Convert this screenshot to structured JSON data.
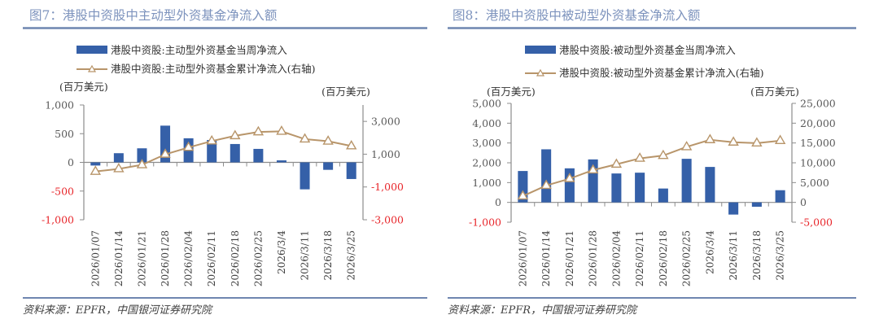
{
  "colors": {
    "bar": "#3560a8",
    "line": "#b8956a",
    "negative_tick": "#e8252a",
    "rule": "#6f86b0",
    "title": "#7d93bd"
  },
  "source_label": "资料来源：EPFR，中国银河证券研究院",
  "chart_data": [
    {
      "type": "bar+line",
      "title": "图7：港股中资股中主动型外资基金净流入额",
      "left_unit": "(百万美元)",
      "right_unit": "(百万美元)",
      "categories": [
        "2026/01/07",
        "2026/01/14",
        "2026/01/21",
        "2026/01/28",
        "2026/02/04",
        "2026/02/11",
        "2026/02/18",
        "2026/02/25",
        "2026/3/4",
        "2026/3/11",
        "2026/3/18",
        "2026/3/25"
      ],
      "series": [
        {
          "name": "港股中资股:主动型外资基金当周净流入",
          "type": "bar",
          "axis": "left",
          "values": [
            -55,
            160,
            245,
            640,
            420,
            390,
            320,
            235,
            35,
            -470,
            -130,
            -290
          ]
        },
        {
          "name": "港股中资股:主动型外资基金累计净流入(右轴)",
          "type": "line",
          "marker": "triangle",
          "axis": "right",
          "values": [
            -55,
            105,
            350,
            990,
            1410,
            1800,
            2120,
            2355,
            2390,
            1920,
            1790,
            1500
          ]
        }
      ],
      "left_axis": {
        "ylim": [
          -1000,
          1000
        ],
        "ticks": [
          1000,
          500,
          0,
          -500,
          -1000
        ],
        "tick_labels": [
          "1,000",
          "500",
          "0",
          "-500",
          "-1,000"
        ]
      },
      "right_axis": {
        "ylim": [
          -3000,
          4000
        ],
        "ticks": [
          3000,
          1000,
          -1000,
          -3000
        ],
        "tick_labels": [
          "3,000",
          "1,000",
          "-1,000",
          "-3,000"
        ]
      },
      "grid": false,
      "legend": "top"
    },
    {
      "type": "bar+line",
      "title": "图8：港股中资股中被动型外资基金净流入额",
      "left_unit": "(百万美元)",
      "right_unit": "(百万美元)",
      "categories": [
        "2026/01/07",
        "2026/01/14",
        "2026/01/21",
        "2026/01/28",
        "2026/02/04",
        "2026/02/11",
        "2026/02/18",
        "2026/02/25",
        "2026/3/4",
        "2026/3/11",
        "2026/3/18",
        "2026/3/25"
      ],
      "series": [
        {
          "name": "港股中资股:被动型外资基金当周净流入",
          "type": "bar",
          "axis": "left",
          "values": [
            1585,
            2680,
            1720,
            2170,
            1460,
            1500,
            700,
            2200,
            1790,
            -615,
            -220,
            615
          ]
        },
        {
          "name": "港股中资股:被动型外资基金累计净流入(右轴)",
          "type": "line",
          "marker": "triangle",
          "axis": "right",
          "values": [
            1585,
            4265,
            5985,
            8155,
            9615,
            11115,
            11815,
            14015,
            15805,
            15190,
            14970,
            15585
          ]
        }
      ],
      "left_axis": {
        "ylim": [
          -1000,
          5000
        ],
        "ticks": [
          5000,
          4000,
          3000,
          2000,
          1000,
          0,
          -1000
        ],
        "tick_labels": [
          "5,000",
          "4,000",
          "3,000",
          "2,000",
          "1,000",
          "0",
          "-1,000"
        ]
      },
      "right_axis": {
        "ylim": [
          -5000,
          25000
        ],
        "ticks": [
          25000,
          20000,
          15000,
          10000,
          5000,
          0,
          -5000
        ],
        "tick_labels": [
          "25,000",
          "20,000",
          "15,000",
          "10,000",
          "5,000",
          "0",
          "-5,000"
        ]
      },
      "grid": false,
      "legend": "top"
    }
  ]
}
